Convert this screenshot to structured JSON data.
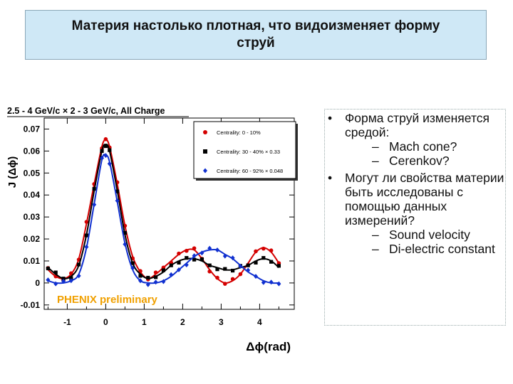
{
  "slide": {
    "title": "Материя настолько плотная, что видоизменяет форму струй"
  },
  "bullets": [
    {
      "text": "Форма струй изменяется средой:",
      "sub": [
        "Mach cone?",
        "Cerenkov?"
      ]
    },
    {
      "text": "Могут ли свойства материи быть исследованы с помощью данных измерений?",
      "sub": [
        "Sound velocity",
        "Di-electric constant"
      ]
    }
  ],
  "colors": {
    "title_bg": "#cfe8f6",
    "red": "#d40000",
    "black": "#000000",
    "blue": "#1030d0",
    "watermark": "#f0a000"
  },
  "chart_data": {
    "type": "scatter",
    "title": "2.5 - 4 GeV/c × 2 - 3 GeV/c,  All Charge",
    "xlabel": "Δϕ(rad)",
    "ylabel": "J (Δϕ)",
    "xlim": [
      -1.6,
      4.9
    ],
    "ylim": [
      -0.012,
      0.075
    ],
    "xticks": [
      "-1",
      "0",
      "1",
      "2",
      "3",
      "4"
    ],
    "yticks": [
      "-0.01",
      "0",
      "0.01",
      "0.02",
      "0.03",
      "0.04",
      "0.05",
      "0.06",
      "0.07"
    ],
    "watermark": "PHENIX preliminary",
    "legend_position": "top-right",
    "series": [
      {
        "name": "Centrality: 0 - 10%",
        "color": "#d40000",
        "marker": "circle",
        "x": [
          -1.5,
          -1.3,
          -1.1,
          -0.9,
          -0.7,
          -0.5,
          -0.3,
          -0.1,
          0.0,
          0.1,
          0.3,
          0.5,
          0.7,
          0.9,
          1.1,
          1.3,
          1.5,
          1.7,
          1.9,
          2.1,
          2.3,
          2.5,
          2.7,
          2.9,
          3.1,
          3.3,
          3.5,
          3.7,
          3.9,
          4.1,
          4.3,
          4.5
        ],
        "y": [
          0.006,
          0.003,
          0.002,
          0.004,
          0.011,
          0.027,
          0.045,
          0.062,
          0.065,
          0.062,
          0.045,
          0.026,
          0.012,
          0.005,
          0.002,
          0.004,
          0.007,
          0.01,
          0.013,
          0.015,
          0.015,
          0.011,
          0.006,
          0.002,
          0.0,
          0.001,
          0.004,
          0.009,
          0.014,
          0.016,
          0.014,
          0.009
        ]
      },
      {
        "name": "Centrality: 30 - 40% × 0.33",
        "color": "#000000",
        "marker": "square",
        "x": [
          -1.5,
          -1.3,
          -1.1,
          -0.9,
          -0.7,
          -0.5,
          -0.3,
          -0.1,
          0.0,
          0.1,
          0.3,
          0.5,
          0.7,
          0.9,
          1.1,
          1.3,
          1.5,
          1.7,
          1.9,
          2.1,
          2.3,
          2.5,
          2.7,
          2.9,
          3.1,
          3.3,
          3.5,
          3.7,
          3.9,
          4.1,
          4.3,
          4.5
        ],
        "y": [
          0.007,
          0.004,
          0.002,
          0.003,
          0.008,
          0.022,
          0.042,
          0.06,
          0.063,
          0.06,
          0.042,
          0.022,
          0.009,
          0.004,
          0.002,
          0.003,
          0.005,
          0.008,
          0.01,
          0.011,
          0.011,
          0.01,
          0.008,
          0.007,
          0.006,
          0.006,
          0.007,
          0.008,
          0.01,
          0.011,
          0.01,
          0.007
        ]
      },
      {
        "name": "Centrality: 60 - 92% × 0.048",
        "color": "#1030d0",
        "marker": "diamond",
        "x": [
          -1.5,
          -1.3,
          -1.1,
          -0.9,
          -0.7,
          -0.5,
          -0.3,
          -0.1,
          0.0,
          0.1,
          0.3,
          0.5,
          0.7,
          0.9,
          1.1,
          1.3,
          1.5,
          1.7,
          1.9,
          2.1,
          2.3,
          2.5,
          2.7,
          2.9,
          3.1,
          3.3,
          3.5,
          3.7,
          3.9,
          4.1,
          4.3,
          4.5
        ],
        "y": [
          0.001,
          0.0,
          0.0,
          0.001,
          0.004,
          0.016,
          0.036,
          0.056,
          0.058,
          0.055,
          0.037,
          0.018,
          0.006,
          0.001,
          0.0,
          0.0,
          0.001,
          0.003,
          0.006,
          0.009,
          0.012,
          0.014,
          0.015,
          0.015,
          0.013,
          0.011,
          0.008,
          0.005,
          0.003,
          0.001,
          0.0,
          0.0
        ]
      }
    ]
  }
}
